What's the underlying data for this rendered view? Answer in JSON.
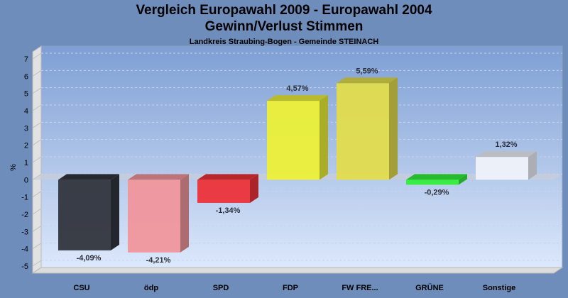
{
  "header": {
    "title": "Vergleich Europawahl 2009 - Europawahl 2004",
    "subtitle": "Gewinn/Verlust Stimmen",
    "caption": "Landkreis Straubing-Bogen - Gemeinde STEINACH"
  },
  "chart_data": {
    "type": "bar",
    "title": "Vergleich Europawahl 2009 - Europawahl 2004 — Gewinn/Verlust Stimmen",
    "subtitle": "Landkreis Straubing-Bogen - Gemeinde STEINACH",
    "xlabel": "",
    "ylabel": "%",
    "ylim": [
      -5,
      7
    ],
    "yticks": [
      7,
      6,
      5,
      4,
      3,
      2,
      1,
      0,
      -1,
      -2,
      -3,
      -4,
      -5
    ],
    "grid": true,
    "categories": [
      "CSU",
      "ödp",
      "SPD",
      "FDP",
      "FW FRE...",
      "GRÜNE",
      "Sonstige"
    ],
    "values": [
      -4.09,
      -4.21,
      -1.34,
      4.57,
      5.59,
      -0.29,
      1.32
    ],
    "data_labels": [
      "-4,09%",
      "-4,21%",
      "-1,34%",
      "4,57%",
      "5,59%",
      "-0,29%",
      "1,32%"
    ],
    "colors": [
      "#31353d",
      "#f0969c",
      "#ec3239",
      "#ecf037",
      "#e2dc4c",
      "#32ee3c",
      "#eef2fa"
    ]
  }
}
